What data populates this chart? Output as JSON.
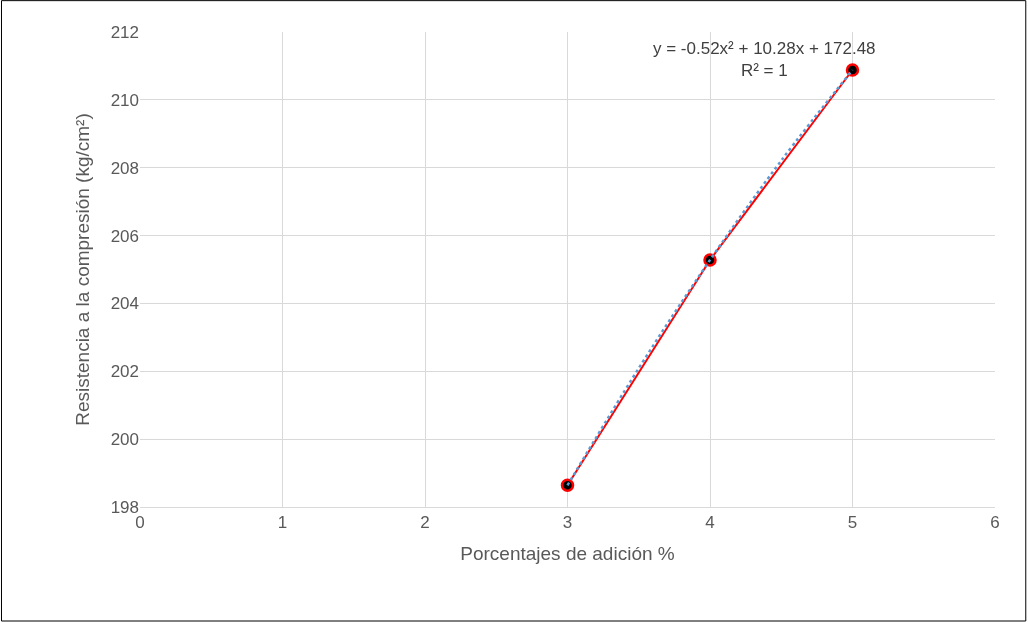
{
  "chart_data": {
    "type": "scatter",
    "xlabel": "Porcentajes de adición %",
    "ylabel": "Resistencia a la compresión (kg/cm²)",
    "xlim": [
      0,
      6
    ],
    "xticks": [
      0,
      1,
      2,
      3,
      4,
      5,
      6
    ],
    "ylim": [
      198,
      212
    ],
    "yticks": [
      198,
      200,
      202,
      204,
      206,
      208,
      210,
      212
    ],
    "grid": true,
    "annotations": [
      "y = -0.52x² + 10.28x + 172.48\nR² = 1"
    ],
    "series": [
      {
        "marker": "circle",
        "color": "#ff0000",
        "line_style": "solid",
        "x": [
          3,
          4,
          5
        ],
        "values": [
          198.64,
          205.28,
          210.88
        ]
      },
      {
        "type": "line",
        "color": "#5b9bd5",
        "line_style": "dotted",
        "x": [
          3,
          3.5,
          4,
          4.5,
          5
        ],
        "values": [
          198.64,
          202.09,
          205.28,
          208.21,
          210.88
        ]
      }
    ]
  }
}
